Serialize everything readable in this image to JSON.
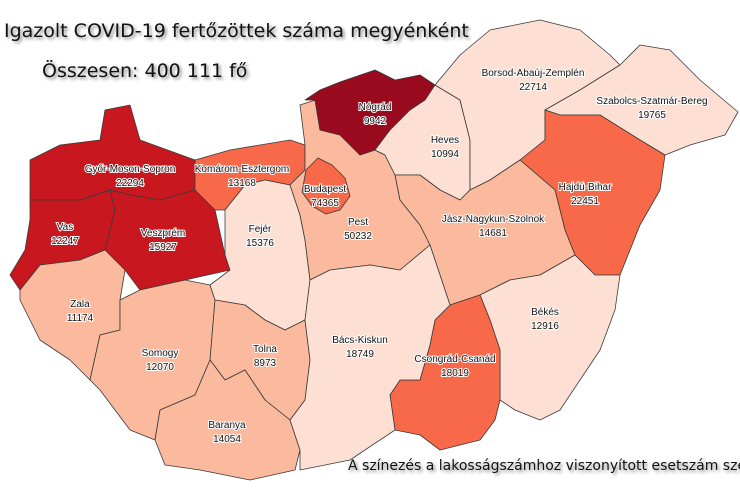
{
  "title": "Igazolt COVID-19 fertőzöttek száma megyénként",
  "total": "Összesen: 400 111 fő",
  "footer": "A színezés a lakosságszámhoz viszonyított esetszám sze",
  "colors": {
    "darkest": "#990a1f",
    "dark": "#c8171e",
    "mid": "#f8694a",
    "light": "#fbb99d",
    "lightest": "#fde0d3"
  },
  "counties": [
    {
      "name": "Győr-Moson-Sopron",
      "value": "22294",
      "level": "dark"
    },
    {
      "name": "Vas",
      "value": "12247",
      "level": "dark"
    },
    {
      "name": "Veszprém",
      "value": "15927",
      "level": "dark"
    },
    {
      "name": "Komárom-Esztergom",
      "value": "13168",
      "level": "mid"
    },
    {
      "name": "Zala",
      "value": "11174",
      "level": "light"
    },
    {
      "name": "Somogy",
      "value": "12070",
      "level": "light"
    },
    {
      "name": "Fejér",
      "value": "15376",
      "level": "lightest"
    },
    {
      "name": "Tolna",
      "value": "8973",
      "level": "light"
    },
    {
      "name": "Baranya",
      "value": "14054",
      "level": "light"
    },
    {
      "name": "Pest",
      "value": "50232",
      "level": "light"
    },
    {
      "name": "Budapest",
      "value": "74365",
      "level": "mid"
    },
    {
      "name": "Nógrád",
      "value": "9942",
      "level": "darkest"
    },
    {
      "name": "Heves",
      "value": "10994",
      "level": "lightest"
    },
    {
      "name": "Borsod-Abaúj-Zemplén",
      "value": "22714",
      "level": "lightest"
    },
    {
      "name": "Szabolcs-Szatmár-Bereg",
      "value": "19765",
      "level": "lightest"
    },
    {
      "name": "Hajdú-Bihar",
      "value": "22451",
      "level": "mid"
    },
    {
      "name": "Jász-Nagykun-Szolnok",
      "value": "14681",
      "level": "light"
    },
    {
      "name": "Békés",
      "value": "12916",
      "level": "lightest"
    },
    {
      "name": "Csongrád-Csanád",
      "value": "18019",
      "level": "mid"
    },
    {
      "name": "Bács-Kiskun",
      "value": "18749",
      "level": "lightest"
    }
  ]
}
